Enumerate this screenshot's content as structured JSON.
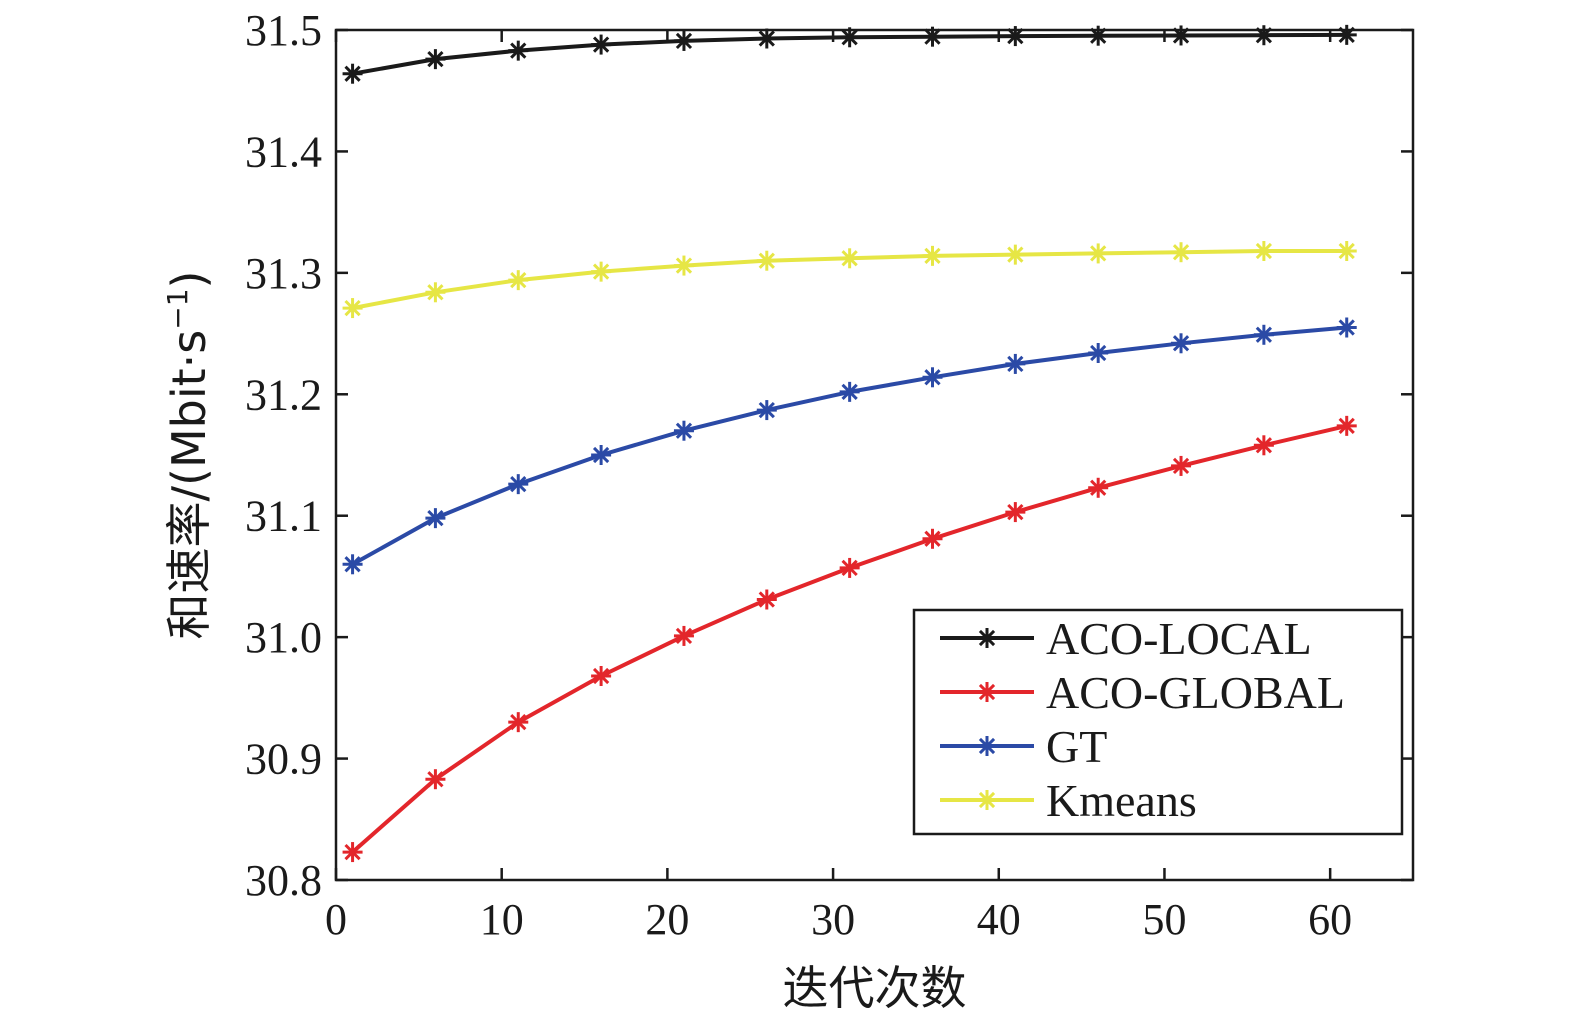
{
  "chart_data": {
    "type": "line",
    "title": "",
    "xlabel": "迭代次数",
    "ylabel": "和速率/(Mbit·s",
    "ylabel_sup": "−1",
    "ylabel_close": ")",
    "xlim": [
      0,
      65
    ],
    "ylim": [
      30.8,
      31.5
    ],
    "xticks": [
      0,
      10,
      20,
      30,
      40,
      50,
      60
    ],
    "xtick_labels": [
      "0",
      "10",
      "20",
      "30",
      "40",
      "50",
      "60"
    ],
    "yticks": [
      30.8,
      30.9,
      31.0,
      31.1,
      31.2,
      31.3,
      31.4,
      31.5
    ],
    "ytick_labels": [
      "30.8",
      "30.9",
      "31.0",
      "31.1",
      "31.2",
      "31.3",
      "31.4",
      "31.5"
    ],
    "grid": false,
    "legend_position": "lower-right",
    "marker": "asterisk",
    "x": [
      1,
      6,
      11,
      16,
      21,
      26,
      31,
      36,
      41,
      46,
      51,
      56,
      61
    ],
    "series": [
      {
        "name": "ACO-LOCAL",
        "color": "#1a1a1a",
        "values": [
          31.464,
          31.476,
          31.483,
          31.488,
          31.491,
          31.493,
          31.494,
          31.4945,
          31.495,
          31.4953,
          31.4955,
          31.4957,
          31.496
        ]
      },
      {
        "name": "ACO-GLOBAL",
        "color": "#e3262b",
        "values": [
          30.823,
          30.883,
          30.93,
          30.968,
          31.001,
          31.031,
          31.057,
          31.081,
          31.103,
          31.123,
          31.141,
          31.158,
          31.174
        ]
      },
      {
        "name": "GT",
        "color": "#2b4aa6",
        "values": [
          31.06,
          31.098,
          31.126,
          31.15,
          31.17,
          31.187,
          31.202,
          31.214,
          31.225,
          31.234,
          31.242,
          31.249,
          31.255
        ]
      },
      {
        "name": "Kmeans",
        "color": "#e6e645",
        "values": [
          31.271,
          31.284,
          31.294,
          31.301,
          31.306,
          31.31,
          31.312,
          31.314,
          31.315,
          31.316,
          31.317,
          31.318,
          31.318
        ]
      }
    ]
  }
}
